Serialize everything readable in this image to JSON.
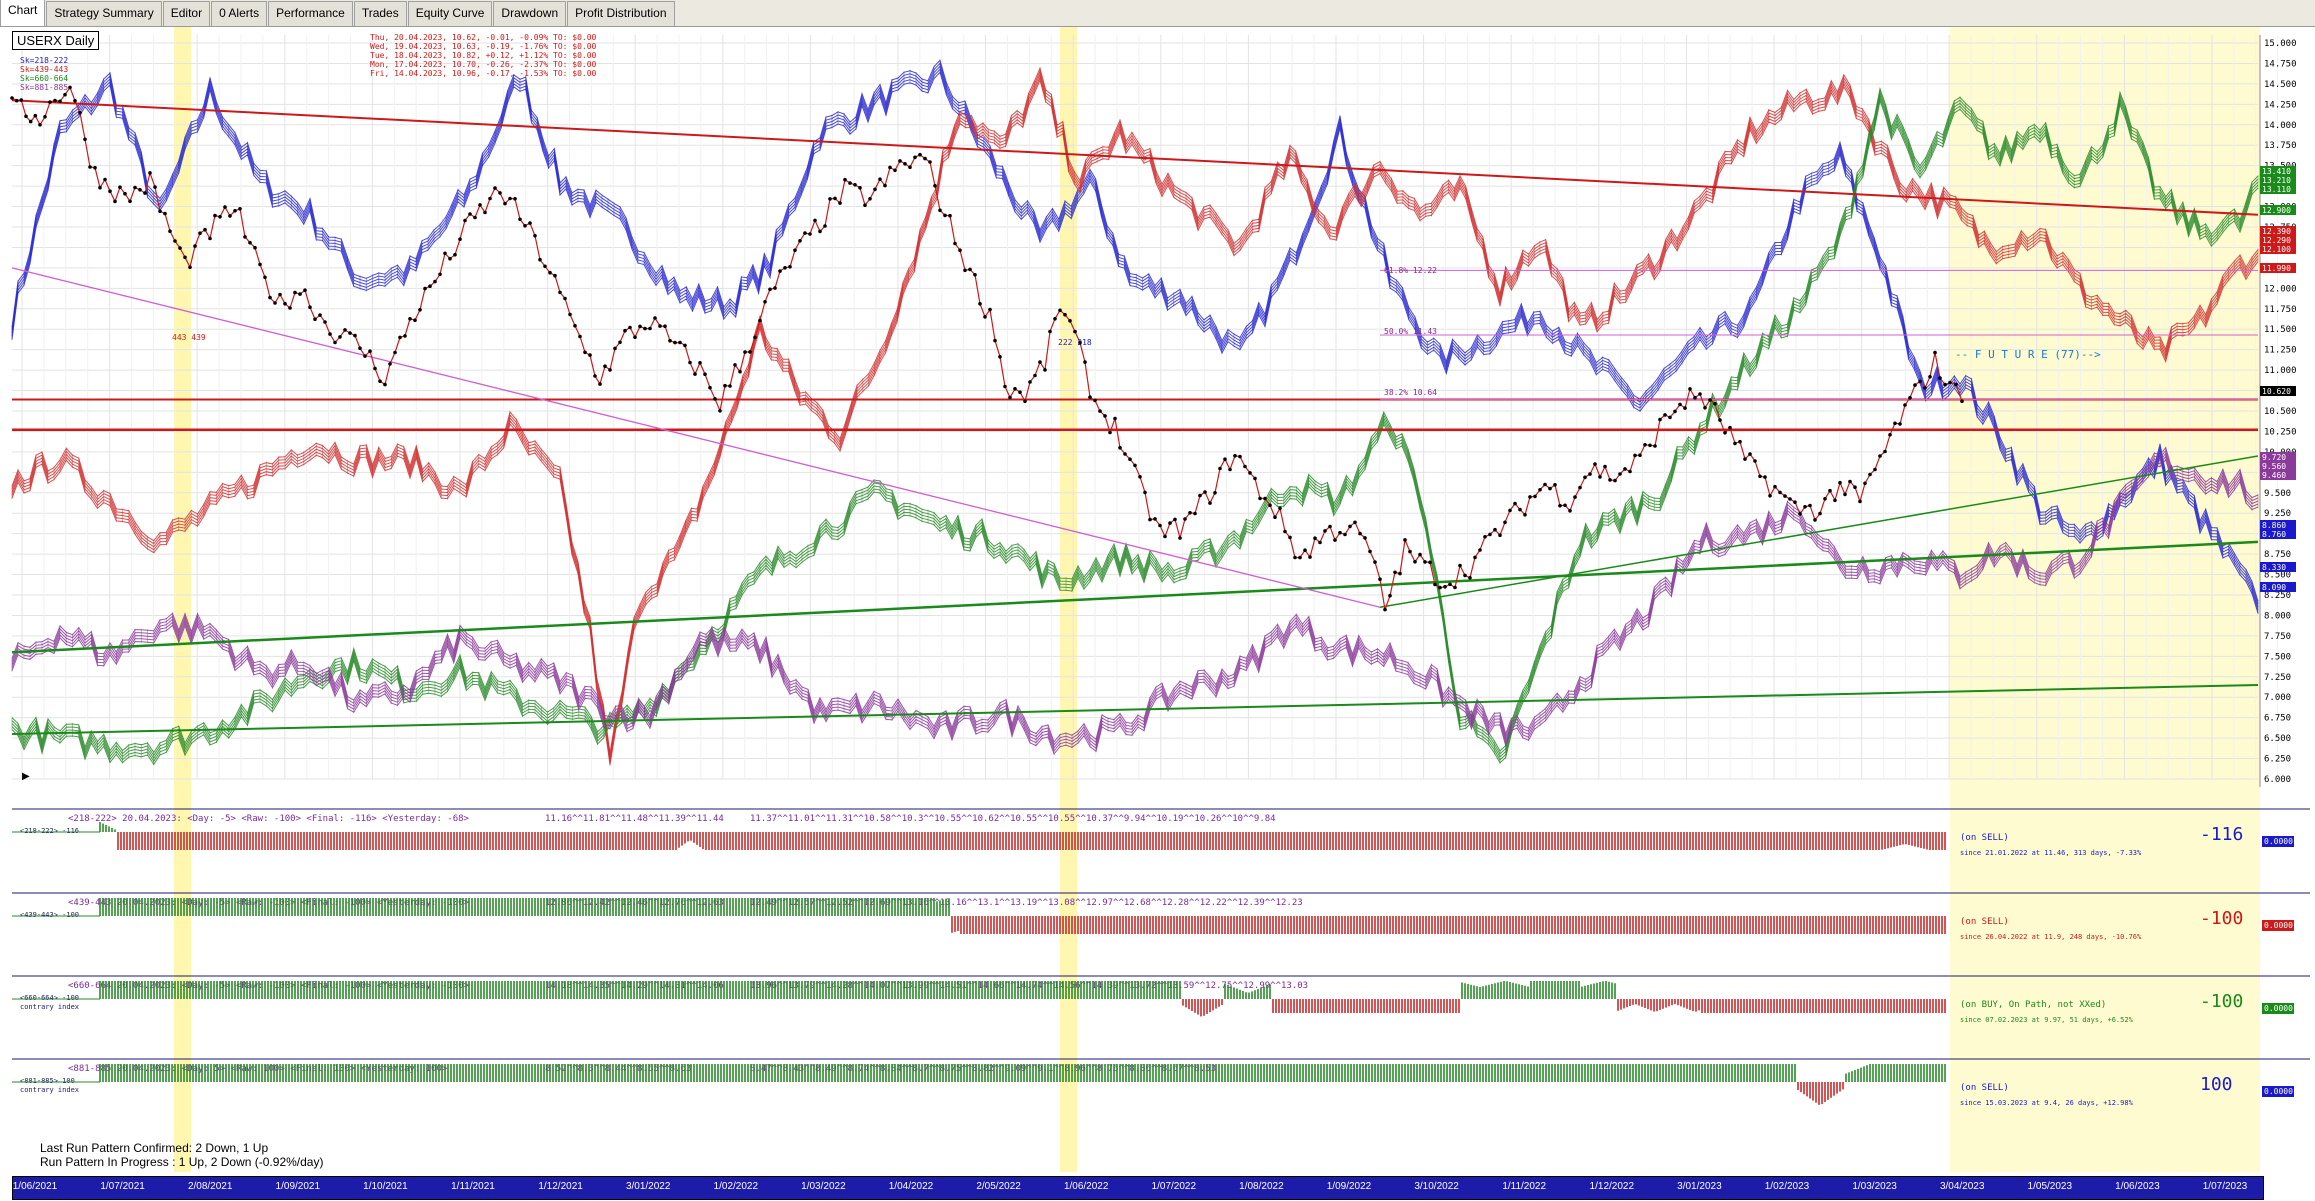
{
  "tabs": [
    "Chart",
    "Strategy Summary",
    "Editor",
    "0 Alerts",
    "Performance",
    "Trades",
    "Equity Curve",
    "Drawdown",
    "Profit Distribution"
  ],
  "active_tab": "Chart",
  "symbol": "USERX Daily",
  "legend": [
    "Sk=218-222",
    "Sk=439-443",
    "Sk=660-664",
    "Sk=881-885"
  ],
  "legend_colors": [
    "#1a1acc",
    "#cc1a1a",
    "#1a8a1a",
    "#8a3a9a"
  ],
  "recent_bars": [
    "Thu, 20.04.2023, 10.62, -0.01, -0.09%   TO: $0.00",
    "Wed, 19.04.2023, 10.63, -0.19, -1.76%   TO: $0.00",
    "Tue, 18.04.2023, 10.82, +0.12, +1.12%   TO: $0.00",
    "Mon, 17.04.2023, 10.70, -0.26, -2.37%   TO: $0.00",
    "Fri, 14.04.2023, 10.96, -0.17, -1.53%   TO: $0.00"
  ],
  "annotations": {
    "label_443": "443 439",
    "label_222": "222 218",
    "fib_618": "61.8% 12.22",
    "fib_50": "50.0% 11.43",
    "fib_382": "38.2% 10.64",
    "future": "-- F U T U R E (77)-->"
  },
  "price_axis": {
    "ticks": [
      "15.000",
      "14.750",
      "14.500",
      "14.250",
      "14.000",
      "13.750",
      "13.500",
      "13.250",
      "13.000",
      "12.750",
      "12.500",
      "12.250",
      "12.000",
      "11.750",
      "11.500",
      "11.250",
      "11.000",
      "10.750",
      "10.500",
      "10.250",
      "10.000",
      "9.750",
      "9.500",
      "9.250",
      "9.000",
      "8.750",
      "8.500",
      "8.250",
      "8.000",
      "7.750",
      "7.500",
      "7.250",
      "7.000",
      "6.750",
      "6.500",
      "6.250",
      "6.000"
    ],
    "badges": [
      {
        "text": "13.410",
        "color": "#1a8a1a"
      },
      {
        "text": "13.210",
        "color": "#1a8a1a"
      },
      {
        "text": "13.110",
        "color": "#1a8a1a"
      },
      {
        "text": "12.900",
        "color": "#1a8a1a"
      },
      {
        "text": "12.390",
        "color": "#cc1a1a"
      },
      {
        "text": "12.290",
        "color": "#cc1a1a"
      },
      {
        "text": "12.100",
        "color": "#cc1a1a"
      },
      {
        "text": "11.990",
        "color": "#cc1a1a"
      },
      {
        "text": "10.620",
        "color": "#000000"
      },
      {
        "text": "9.720",
        "color": "#8a3a9a"
      },
      {
        "text": "9.560",
        "color": "#8a3a9a"
      },
      {
        "text": "9.460",
        "color": "#8a3a9a"
      },
      {
        "text": "8.860",
        "color": "#1a1acc"
      },
      {
        "text": "8.760",
        "color": "#1a1acc"
      },
      {
        "text": "8.330",
        "color": "#1a1acc"
      },
      {
        "text": "8.090",
        "color": "#1a1acc"
      }
    ]
  },
  "indicators": [
    {
      "header": "<218-222>  20.04.2023:  <Day: -5>  <Raw: -100>  <Final: -116>  <Yesterday: -68>",
      "seq1": "11.16^^11.81^^11.48^^11.39^^11.44",
      "seq2": "11.37^^11.01^^11.31^^10.58^^10.3^^10.55^^10.62^^10.55^^10.55^^10.37^^9.94^^10.19^^10.26^^10^^9.84",
      "tag": "<218-222> -116",
      "sub": "",
      "status": "(on SELL)",
      "since": "since 21.01.2022 at 11.46, 313 days, -7.33%",
      "big": "-116",
      "big_color": "#1a1acc",
      "box": "0.0000",
      "box_color": "#1a1acc"
    },
    {
      "header": "<439-443  20.04.2023:  <Day: -5>  <Raw: -100>  <Final: -100>  <Yesterday: -100>",
      "seq1": "12.86^^12.42^^12.46^^12.76^^12.63",
      "seq2": "12.49^^12.57^^12.52^^12.69^^13.16^^13.16^^13.1^^13.19^^13.08^^12.97^^12.68^^12.28^^12.22^^12.39^^12.23",
      "tag": "<439-443> -100",
      "sub": "",
      "status": "(on SELL)",
      "since": "since 26.04.2022 at 11.9, 248 days, -10.76%",
      "big": "-100",
      "big_color": "#cc1a1a",
      "box": "0.0000",
      "box_color": "#cc1a1a"
    },
    {
      "header": "<660-664  20.04.2023:  <Day: -5>  <Raw: -100>  <Final: -100>  <Yesterday: -100>",
      "seq1": "14.18^^14.35^^14.29^^14.31^^14.06",
      "seq2": "13.96^^13.79^^14.28^^14.07^^13.99^^14.51^^14.66^^14.74^^14.56^^14.39^^13.72^^13.59^^12.75^^12.99^^13.03",
      "tag": "<660-664> -100",
      "sub": "contrary index",
      "status": "(on BUY, On Path, not XXed)",
      "since": "since 07.02.2023 at 9.97, 51 days, +6.52%",
      "big": "-100",
      "big_color": "#1a8a1a",
      "box": "0.0000",
      "box_color": "#1a8a1a"
    },
    {
      "header": "<881-885  20.04.2023:  <Day: 5>  <Raw: 100>  <Final: 100>  <Yesterday: 100>",
      "seq1": "8.52^^8.3^^8.44^^8.65^^8.63",
      "seq2": "8.47^^8.43^^8.49^^8.74^^8.84^^8.7^^8.75^^8.82^^9.09^^9.1^^8.96^^8.76^^8.86^^8.67^^8.53",
      "tag": "<881-885> 100",
      "sub": "contrary index",
      "status": "(on SELL)",
      "since": "since 15.03.2023 at 9.4, 26 days, +12.98%",
      "big": "100",
      "big_color": "#1a1acc",
      "box": "0.0000",
      "box_color": "#1a1acc"
    }
  ],
  "status_lines": [
    "Last Run Pattern Confirmed: 2 Down, 1 Up",
    "Run Pattern In Progress      : 1 Up, 2 Down  (-0.92%/day)"
  ],
  "dates": [
    "1/06/2021",
    "1/07/2021",
    "2/08/2021",
    "1/09/2021",
    "1/10/2021",
    "1/11/2021",
    "1/12/2021",
    "3/01/2022",
    "1/02/2022",
    "1/03/2022",
    "1/04/2022",
    "2/05/2022",
    "1/06/2022",
    "1/07/2022",
    "1/08/2022",
    "1/09/2022",
    "3/10/2022",
    "1/11/2022",
    "1/12/2022",
    "3/01/2023",
    "1/02/2023",
    "1/03/2023",
    "3/04/2023",
    "1/05/2023",
    "1/06/2023",
    "1/07/2023"
  ]
}
